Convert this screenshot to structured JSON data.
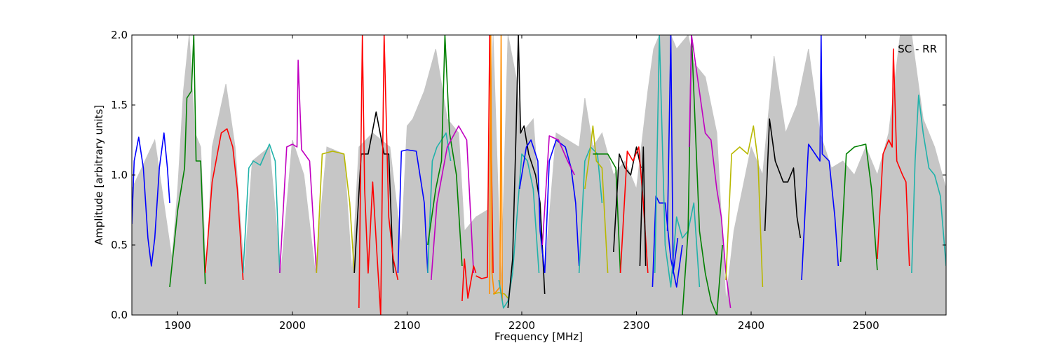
{
  "chart_data": {
    "type": "line",
    "xlabel": "Frequency [MHz]",
    "ylabel": "Amplitude [arbitrary units]",
    "annotation": "SC - RR",
    "xlim": [
      1860,
      2570
    ],
    "ylim": [
      0.0,
      2.0
    ],
    "xticks": [
      1900,
      2000,
      2100,
      2200,
      2300,
      2400,
      2500
    ],
    "yticks": [
      0.0,
      0.5,
      1.0,
      1.5,
      2.0
    ],
    "xtick_labels": [
      "1900",
      "2000",
      "2100",
      "2200",
      "2300",
      "2400",
      "2500"
    ],
    "ytick_labels": [
      "0.0",
      "0.5",
      "1.0",
      "1.5",
      "2.0"
    ],
    "grid": false,
    "background_series": {
      "color": "#c0c0c0",
      "x": [
        1860,
        1880,
        1895,
        1900,
        1905,
        1910,
        1915,
        1920,
        1925,
        1930,
        1942,
        1950,
        1958,
        1965,
        1980,
        1990,
        2000,
        2010,
        2020,
        2030,
        2045,
        2052,
        2058,
        2070,
        2085,
        2095,
        2100,
        2105,
        2115,
        2125,
        2135,
        2145,
        2150,
        2160,
        2170,
        2175,
        2182,
        2188,
        2195,
        2200,
        2210,
        2220,
        2230,
        2240,
        2250,
        2255,
        2262,
        2270,
        2280,
        2290,
        2300,
        2310,
        2315,
        2320,
        2330,
        2335,
        2345,
        2350,
        2360,
        2370,
        2378,
        2385,
        2400,
        2410,
        2420,
        2430,
        2440,
        2450,
        2460,
        2470,
        2480,
        2490,
        2500,
        2510,
        2520,
        2530,
        2540,
        2550,
        2560,
        2570
      ],
      "y": [
        0.9,
        1.25,
        0.4,
        0.9,
        1.6,
        2.0,
        1.3,
        1.2,
        0.25,
        1.2,
        1.65,
        1.2,
        0.3,
        1.1,
        1.2,
        0.3,
        1.25,
        1.0,
        0.3,
        1.2,
        1.15,
        0.3,
        1.2,
        1.3,
        1.2,
        0.5,
        1.35,
        1.4,
        1.6,
        1.9,
        1.4,
        1.3,
        0.6,
        0.7,
        0.75,
        2.0,
        0.2,
        2.0,
        1.7,
        1.3,
        1.4,
        0.3,
        1.3,
        1.25,
        1.2,
        1.55,
        1.2,
        1.3,
        1.0,
        1.1,
        0.9,
        1.6,
        1.9,
        2.0,
        2.0,
        1.9,
        2.0,
        1.8,
        1.7,
        1.3,
        0.1,
        0.6,
        1.2,
        1.0,
        1.85,
        1.3,
        1.5,
        1.9,
        1.3,
        1.05,
        1.1,
        1.0,
        1.2,
        1.0,
        1.3,
        2.0,
        2.0,
        1.4,
        1.2,
        0.9
      ]
    },
    "series": [
      {
        "color": "#0000ff",
        "x": [
          1860,
          1862,
          1866,
          1870,
          1874,
          1877,
          1880,
          1884,
          1888,
          1891,
          1893
        ],
        "y": [
          0.65,
          1.1,
          1.27,
          1.05,
          0.55,
          0.35,
          0.55,
          1.05,
          1.3,
          1.05,
          0.8
        ]
      },
      {
        "color": "#008000",
        "x": [
          1893,
          1900,
          1906,
          1908,
          1912,
          1914,
          1916,
          1920,
          1924
        ],
        "y": [
          0.2,
          0.75,
          1.05,
          1.55,
          1.6,
          2.0,
          1.1,
          1.1,
          0.22
        ]
      },
      {
        "color": "#ff0000",
        "x": [
          1924,
          1930,
          1938,
          1943,
          1948,
          1952,
          1957
        ],
        "y": [
          0.3,
          0.95,
          1.3,
          1.33,
          1.2,
          0.9,
          0.25
        ]
      },
      {
        "color": "#20b2aa",
        "x": [
          1957,
          1962,
          1966,
          1972,
          1980,
          1985,
          1989
        ],
        "y": [
          0.3,
          1.05,
          1.1,
          1.07,
          1.22,
          1.1,
          0.3
        ]
      },
      {
        "color": "#c000c0",
        "x": [
          1989,
          1995,
          2000,
          2004,
          2005,
          2008,
          2015,
          2021
        ],
        "y": [
          0.3,
          1.2,
          1.22,
          1.2,
          1.82,
          1.18,
          1.1,
          0.3
        ]
      },
      {
        "color": "#b8b800",
        "x": [
          2021,
          2026,
          2035,
          2045,
          2050,
          2054
        ],
        "y": [
          0.3,
          1.15,
          1.17,
          1.15,
          0.8,
          0.3
        ]
      },
      {
        "color": "#000000",
        "x": [
          2054,
          2060,
          2066,
          2073,
          2080,
          2084,
          2088
        ],
        "y": [
          0.3,
          1.15,
          1.15,
          1.45,
          1.15,
          1.15,
          0.3
        ]
      },
      {
        "color": "#ff0000",
        "x": [
          2058,
          2061,
          2063,
          2066,
          2070,
          2074,
          2077,
          2080,
          2084,
          2088,
          2092
        ],
        "y": [
          0.05,
          2.0,
          0.9,
          0.3,
          0.95,
          0.4,
          0.0,
          2.0,
          0.7,
          0.4,
          0.25
        ]
      },
      {
        "color": "#0000ff",
        "x": [
          2092,
          2095,
          2100,
          2108,
          2115,
          2118
        ],
        "y": [
          0.3,
          1.17,
          1.18,
          1.17,
          0.8,
          0.3
        ]
      },
      {
        "color": "#20b2aa",
        "x": [
          2118,
          2122,
          2126,
          2134,
          2138
        ],
        "y": [
          0.3,
          1.1,
          1.2,
          1.3,
          1.1
        ]
      },
      {
        "color": "#008000",
        "x": [
          2118,
          2125,
          2130,
          2133,
          2137,
          2143,
          2148
        ],
        "y": [
          0.5,
          0.9,
          1.1,
          2.0,
          1.3,
          1.0,
          0.35
        ]
      },
      {
        "color": "#c000c0",
        "x": [
          2121,
          2126,
          2135,
          2145,
          2152,
          2158
        ],
        "y": [
          0.25,
          0.8,
          1.2,
          1.35,
          1.25,
          0.3
        ]
      },
      {
        "color": "#ff0000",
        "x": [
          2148,
          2150,
          2153,
          2158,
          2160
        ],
        "y": [
          0.1,
          0.4,
          0.12,
          0.35,
          0.3
        ]
      },
      {
        "color": "#ff0000",
        "x": [
          2160,
          2165,
          2170,
          2172,
          2175
        ],
        "y": [
          0.28,
          0.26,
          0.27,
          2.0,
          0.3
        ]
      },
      {
        "color": "#b8b800",
        "x": [
          2175,
          2180,
          2185,
          2188
        ],
        "y": [
          0.15,
          0.16,
          0.15,
          0.12
        ]
      },
      {
        "color": "#ff8c00",
        "x": [
          2172,
          2173,
          2174,
          2176,
          2181,
          2182,
          2183
        ],
        "y": [
          0.15,
          2.0,
          0.3,
          0.15,
          0.2,
          2.0,
          0.1
        ]
      },
      {
        "color": "#20b2aa",
        "x": [
          2180,
          2184,
          2188,
          2192,
          2200,
          2205,
          2210,
          2215
        ],
        "y": [
          0.25,
          0.05,
          0.1,
          0.3,
          1.15,
          1.1,
          0.9,
          0.3
        ]
      },
      {
        "color": "#000000",
        "x": [
          2188,
          2192,
          2195,
          2197,
          2199,
          2202,
          2206,
          2212,
          2216,
          2220
        ],
        "y": [
          0.05,
          0.4,
          1.3,
          2.0,
          1.3,
          1.35,
          1.15,
          1.0,
          0.8,
          0.15
        ]
      },
      {
        "color": "#0000ff",
        "x": [
          2198,
          2204,
          2208,
          2214,
          2216,
          2220
        ],
        "y": [
          0.9,
          1.2,
          1.25,
          1.1,
          0.6,
          0.3
        ]
      },
      {
        "color": "#0000ff",
        "x": [
          2220,
          2224,
          2230,
          2238,
          2243,
          2247,
          2250
        ],
        "y": [
          0.3,
          1.1,
          1.25,
          1.2,
          1.05,
          0.8,
          0.35
        ]
      },
      {
        "color": "#c000c0",
        "x": [
          2218,
          2224,
          2232,
          2240,
          2246
        ],
        "y": [
          0.5,
          1.28,
          1.25,
          1.1,
          1.0
        ]
      },
      {
        "color": "#20b2aa",
        "x": [
          2250,
          2255,
          2260,
          2266,
          2270
        ],
        "y": [
          0.3,
          1.1,
          1.2,
          1.15,
          0.8
        ]
      },
      {
        "color": "#b8b800",
        "x": [
          2255,
          2260,
          2262,
          2265,
          2270,
          2275
        ],
        "y": [
          0.9,
          1.2,
          1.35,
          1.1,
          1.05,
          0.3
        ]
      },
      {
        "color": "#008000",
        "x": [
          2262,
          2268,
          2275,
          2282,
          2286
        ],
        "y": [
          1.15,
          1.15,
          1.15,
          1.05,
          0.3
        ]
      },
      {
        "color": "#000000",
        "x": [
          2280,
          2285,
          2290,
          2295,
          2300,
          2304
        ],
        "y": [
          0.45,
          1.15,
          1.05,
          1.0,
          1.2,
          1.05
        ]
      },
      {
        "color": "#ff0000",
        "x": [
          2286,
          2292,
          2297,
          2302,
          2306,
          2310
        ],
        "y": [
          0.3,
          1.17,
          1.1,
          1.2,
          0.8,
          0.3
        ]
      },
      {
        "color": "#000000",
        "x": [
          2303,
          2306,
          2308
        ],
        "y": [
          0.35,
          1.2,
          0.35
        ]
      },
      {
        "color": "#0000ff",
        "x": [
          2314,
          2317,
          2320,
          2325,
          2330,
          2335,
          2340
        ],
        "y": [
          0.2,
          0.85,
          0.8,
          0.8,
          0.4,
          0.2,
          0.5
        ]
      },
      {
        "color": "#20b2aa",
        "x": [
          2316,
          2320,
          2325,
          2330,
          2335,
          2340,
          2345,
          2350,
          2355
        ],
        "y": [
          0.3,
          2.0,
          0.5,
          0.2,
          0.7,
          0.55,
          0.6,
          0.8,
          0.2
        ]
      },
      {
        "color": "#0000ff",
        "x": [
          2327,
          2330,
          2332,
          2336
        ],
        "y": [
          0.6,
          2.0,
          0.3,
          0.55
        ]
      },
      {
        "color": "#008000",
        "x": [
          2340,
          2345,
          2348,
          2355,
          2360,
          2365,
          2370,
          2375
        ],
        "y": [
          0.0,
          0.6,
          2.0,
          0.6,
          0.3,
          0.1,
          0.0,
          0.5
        ]
      },
      {
        "color": "#c000c0",
        "x": [
          2346,
          2348,
          2360,
          2365,
          2370,
          2374,
          2378,
          2382
        ],
        "y": [
          1.2,
          2.0,
          1.3,
          1.25,
          0.9,
          0.7,
          0.3,
          0.05
        ]
      },
      {
        "color": "#b8b800",
        "x": [
          2378,
          2383,
          2390,
          2397,
          2402,
          2406,
          2410
        ],
        "y": [
          0.25,
          1.15,
          1.2,
          1.15,
          1.35,
          1.1,
          0.2
        ]
      },
      {
        "color": "#000000",
        "x": [
          2412,
          2416,
          2421,
          2428,
          2432,
          2437,
          2440,
          2443
        ],
        "y": [
          0.6,
          1.4,
          1.1,
          0.95,
          0.95,
          1.05,
          0.7,
          0.55
        ]
      },
      {
        "color": "#0000ff",
        "x": [
          2444,
          2450,
          2460,
          2461,
          2462,
          2468,
          2473,
          2476
        ],
        "y": [
          0.25,
          1.22,
          1.1,
          2.0,
          1.15,
          1.1,
          0.7,
          0.35
        ]
      },
      {
        "color": "#008000",
        "x": [
          2478,
          2483,
          2490,
          2500,
          2505,
          2510
        ],
        "y": [
          0.38,
          1.15,
          1.2,
          1.22,
          0.9,
          0.32
        ]
      },
      {
        "color": "#ff0000",
        "x": [
          2510,
          2515,
          2520,
          2523,
          2524,
          2527,
          2532,
          2535,
          2538
        ],
        "y": [
          0.4,
          1.15,
          1.25,
          1.2,
          1.9,
          1.1,
          1.0,
          0.95,
          0.35
        ]
      },
      {
        "color": "#20b2aa",
        "x": [
          2540,
          2543,
          2546,
          2550,
          2555,
          2560,
          2565,
          2570
        ],
        "y": [
          0.3,
          1.1,
          1.57,
          1.3,
          1.05,
          1.0,
          0.85,
          0.35
        ]
      }
    ]
  }
}
